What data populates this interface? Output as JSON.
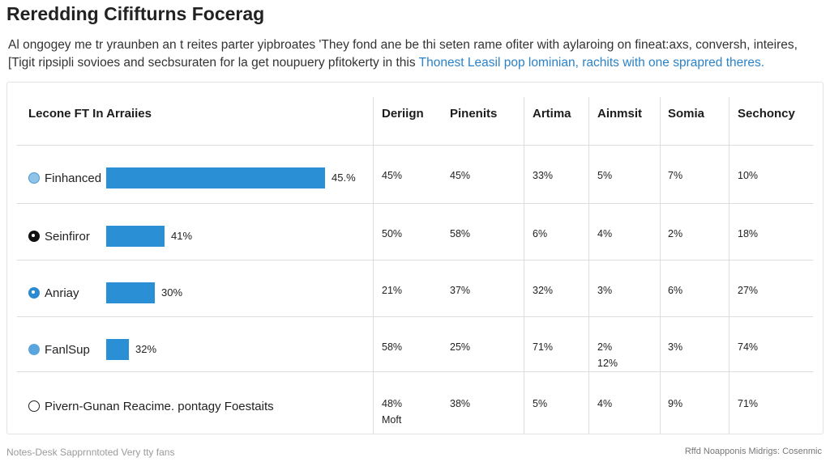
{
  "title": "Reredding Cififturns Focerag",
  "intro": {
    "line1": "Al ongogey me tr yraunben an t reites parter yipbroates 'They fond ane be thi seten rame ofiter with aylaroing on fineat:axs, conversh, inteires,",
    "line2_plain": "[Tigit ripsipli sovioes and secbsuraten for la get noupuery pfitokerty in this",
    "line2_highlight": "Thonest Leasil pop lominian, rachits with one sprapred theres."
  },
  "chart_data": {
    "type": "table",
    "title": "Lecone FT In Arraiies",
    "columns": [
      "Deriign",
      "Pinenits",
      "Artima",
      "Ainmsit",
      "Somia",
      "Sechoncy"
    ],
    "rows": [
      {
        "label": "Finhanced",
        "icon": "globe-icon",
        "bar_value": 45,
        "bar_label": "45.%",
        "cells": [
          "45%",
          "45%",
          "33%",
          "5%",
          "7%",
          "10%"
        ]
      },
      {
        "label": "Seinfiror",
        "icon": "dark-circle-icon",
        "bar_value": 41,
        "bar_label": "41%",
        "cells": [
          "50%",
          "58%",
          "6%",
          "4%",
          "2%",
          "18%"
        ]
      },
      {
        "label": "Anriay",
        "icon": "blue-circle-icon",
        "bar_value": 30,
        "bar_label": "30%",
        "cells": [
          "21%",
          "37%",
          "32%",
          "3%",
          "6%",
          "27%"
        ]
      },
      {
        "label": "FanlSup",
        "icon": "lightblue-circle-icon",
        "bar_value": 32,
        "bar_label": "32%",
        "cells": [
          "58%",
          "25%",
          "71%",
          "2%\n12%",
          "3%",
          "74%"
        ]
      },
      {
        "label": "Pivern-Gunan Reacime. pontagy Foestaits",
        "icon": "ring-icon",
        "bar_value": null,
        "bar_label": "",
        "cells": [
          "48%\nMoft",
          "38%",
          "5%",
          "4%",
          "9%",
          "71%"
        ]
      }
    ],
    "bar_color": "#2b8fd6",
    "grid": true
  },
  "footer": {
    "left": "Notes-Desk Sapprnntoted Very tty fans",
    "right": "Rffd Noapponis Midrigs: Cosenmic"
  }
}
